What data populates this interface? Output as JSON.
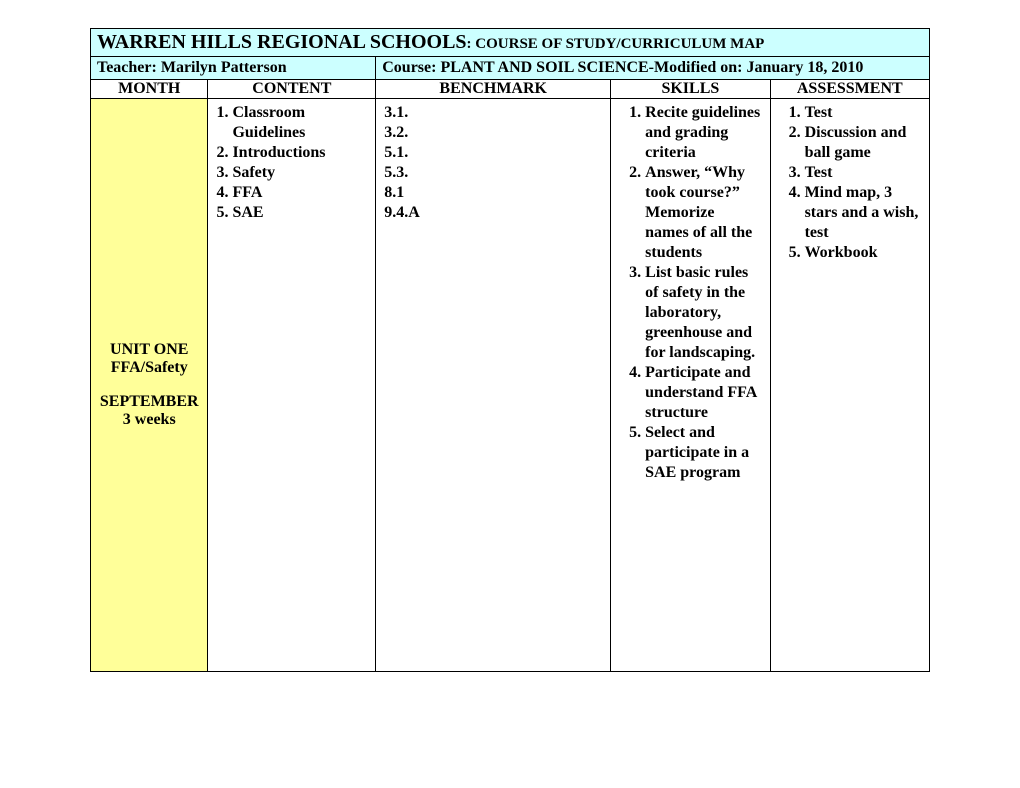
{
  "header": {
    "title_main": "WARREN HILLS REGIONAL SCHOOLS",
    "title_sub": ": COURSE OF STUDY/CURRICULUM MAP",
    "teacher_line": "Teacher: Marilyn Patterson",
    "course_line": "Course: PLANT AND SOIL SCIENCE-Modified on: January 18, 2010"
  },
  "columns": {
    "month": "MONTH",
    "content": "CONTENT",
    "benchmark": "BENCHMARK",
    "skills": "SKILLS",
    "assessment": "ASSESSMENT"
  },
  "row": {
    "month": {
      "unit": "UNIT ONE",
      "topic": "FFA/Safety",
      "when": "SEPTEMBER",
      "duration": "3 weeks"
    },
    "content": [
      "1. Classroom",
      "    Guidelines",
      "2. Introductions",
      "3. Safety",
      "4. FFA",
      "5. SAE"
    ],
    "benchmark": [
      "3.1.",
      "3.2.",
      "5.1.",
      "5.3.",
      "8.1",
      "9.4.A"
    ],
    "skills": [
      "Recite guidelines and grading criteria",
      "Answer, “Why took course?” Memorize names of all the students",
      "List basic rules of safety in the laboratory, greenhouse and for landscaping.",
      "Participate and understand FFA structure",
      " Select and participate in a SAE program"
    ],
    "assessment": [
      "Test",
      "Discussion and ball game",
      "Test",
      "Mind map, 3 stars and a wish, test",
      "Workbook"
    ]
  },
  "style": {
    "header_bg": "#ccffff",
    "month_bg": "#ffff99",
    "border": "#000000",
    "font": "Times New Roman"
  }
}
